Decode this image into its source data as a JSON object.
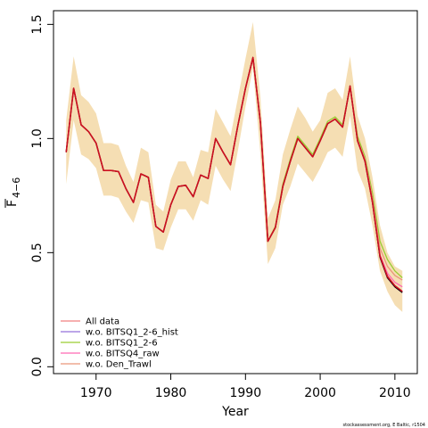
{
  "chart_data": {
    "type": "line",
    "xlabel": "Year",
    "ylabel_main": "F",
    "ylabel_sub": "4−6",
    "xlim": [
      1964.3,
      2013.0
    ],
    "ylim": [
      -0.03,
      1.56
    ],
    "xticks": [
      1970,
      1980,
      1990,
      2000,
      2010
    ],
    "xtick_labels": [
      "1970",
      "1980",
      "1990",
      "2000",
      "2010"
    ],
    "yticks": [
      0.0,
      0.5,
      1.0,
      1.5
    ],
    "ytick_labels": [
      "0.0",
      "0.5",
      "1.0",
      "1.5"
    ],
    "grid": false,
    "legend_position": "bottom-left",
    "band": {
      "color": "#F5DEB3",
      "x": [
        1966,
        1967,
        1968,
        1969,
        1970,
        1971,
        1972,
        1973,
        1974,
        1975,
        1976,
        1977,
        1978,
        1979,
        1980,
        1981,
        1982,
        1983,
        1984,
        1985,
        1986,
        1987,
        1988,
        1989,
        1990,
        1991,
        1992,
        1993,
        1994,
        1995,
        1996,
        1997,
        1998,
        1999,
        2000,
        2001,
        2002,
        2003,
        2004,
        2005,
        2006,
        2007,
        2008,
        2009,
        2010,
        2011
      ],
      "upper": [
        1.08,
        1.36,
        1.19,
        1.16,
        1.11,
        0.98,
        0.98,
        0.97,
        0.88,
        0.81,
        0.96,
        0.94,
        0.71,
        0.68,
        0.82,
        0.9,
        0.9,
        0.83,
        0.95,
        0.94,
        1.13,
        1.07,
        1.01,
        1.18,
        1.35,
        1.51,
        1.18,
        0.65,
        0.73,
        0.93,
        1.04,
        1.14,
        1.09,
        1.03,
        1.08,
        1.2,
        1.22,
        1.17,
        1.36,
        1.1,
        1.0,
        0.83,
        0.62,
        0.5,
        0.44,
        0.42
      ],
      "lower": [
        0.8,
        1.08,
        0.93,
        0.91,
        0.87,
        0.75,
        0.75,
        0.74,
        0.68,
        0.63,
        0.73,
        0.72,
        0.52,
        0.51,
        0.61,
        0.69,
        0.69,
        0.64,
        0.73,
        0.71,
        0.88,
        0.82,
        0.77,
        0.95,
        1.14,
        1.31,
        0.93,
        0.45,
        0.52,
        0.71,
        0.79,
        0.89,
        0.85,
        0.81,
        0.87,
        0.94,
        0.96,
        0.92,
        1.1,
        0.86,
        0.78,
        0.62,
        0.42,
        0.33,
        0.27,
        0.24
      ]
    },
    "x": [
      1966,
      1967,
      1968,
      1969,
      1970,
      1971,
      1972,
      1973,
      1974,
      1975,
      1976,
      1977,
      1978,
      1979,
      1980,
      1981,
      1982,
      1983,
      1984,
      1985,
      1986,
      1987,
      1988,
      1989,
      1990,
      1991,
      1992,
      1993,
      1994,
      1995,
      1996,
      1997,
      1998,
      1999,
      2000,
      2001,
      2002,
      2003,
      2004,
      2005,
      2006,
      2007,
      2008,
      2009,
      2010,
      2011
    ],
    "series": [
      {
        "name": "All data",
        "color": "#F08080",
        "values": [
          0.94,
          1.22,
          1.06,
          1.03,
          0.98,
          0.86,
          0.86,
          0.855,
          0.78,
          0.72,
          0.845,
          0.83,
          0.615,
          0.59,
          0.71,
          0.79,
          0.795,
          0.745,
          0.84,
          0.825,
          1.0,
          0.94,
          0.885,
          1.06,
          1.22,
          1.355,
          1.07,
          0.55,
          0.61,
          0.79,
          0.9,
          1.0,
          0.96,
          0.92,
          0.99,
          1.065,
          1.085,
          1.05,
          1.23,
          0.99,
          0.9,
          0.72,
          0.49,
          0.4,
          0.355,
          0.33
        ]
      },
      {
        "name": "w.o. BITSQ1_2-6_hist",
        "color": "#9370DB",
        "values": [
          0.94,
          1.22,
          1.06,
          1.03,
          0.98,
          0.86,
          0.86,
          0.855,
          0.78,
          0.72,
          0.845,
          0.83,
          0.615,
          0.59,
          0.71,
          0.79,
          0.795,
          0.745,
          0.84,
          0.825,
          1.0,
          0.94,
          0.885,
          1.06,
          1.22,
          1.355,
          1.07,
          0.55,
          0.61,
          0.79,
          0.9,
          1.0,
          0.96,
          0.92,
          0.99,
          1.065,
          1.085,
          1.05,
          1.23,
          0.99,
          0.9,
          0.72,
          0.48,
          0.39,
          0.35,
          0.325
        ]
      },
      {
        "name": "w.o. BITSQ1_2-6",
        "color": "#9ACD32",
        "values": [
          0.94,
          1.22,
          1.06,
          1.03,
          0.98,
          0.86,
          0.86,
          0.855,
          0.78,
          0.72,
          0.845,
          0.83,
          0.615,
          0.59,
          0.71,
          0.79,
          0.795,
          0.745,
          0.84,
          0.825,
          1.0,
          0.94,
          0.885,
          1.06,
          1.22,
          1.355,
          1.07,
          0.55,
          0.615,
          0.8,
          0.91,
          1.01,
          0.97,
          0.93,
          1.0,
          1.075,
          1.095,
          1.06,
          1.225,
          1.01,
          0.92,
          0.76,
          0.55,
          0.47,
          0.42,
          0.39
        ]
      },
      {
        "name": "w.o. BITSQ4_raw",
        "color": "#FF69B4",
        "values": [
          0.94,
          1.22,
          1.06,
          1.03,
          0.98,
          0.86,
          0.86,
          0.855,
          0.78,
          0.72,
          0.845,
          0.83,
          0.615,
          0.59,
          0.71,
          0.79,
          0.795,
          0.745,
          0.84,
          0.825,
          1.0,
          0.94,
          0.885,
          1.06,
          1.22,
          1.355,
          1.07,
          0.55,
          0.61,
          0.79,
          0.9,
          1.0,
          0.96,
          0.92,
          0.99,
          1.065,
          1.085,
          1.05,
          1.23,
          0.99,
          0.9,
          0.72,
          0.49,
          0.41,
          0.37,
          0.35
        ]
      },
      {
        "name": "w.o. Den_Trawl",
        "color": "#E9967A",
        "values": [
          0.94,
          1.22,
          1.06,
          1.03,
          0.98,
          0.86,
          0.86,
          0.855,
          0.78,
          0.72,
          0.845,
          0.83,
          0.615,
          0.59,
          0.71,
          0.79,
          0.795,
          0.745,
          0.84,
          0.825,
          1.0,
          0.94,
          0.885,
          1.06,
          1.22,
          1.355,
          1.07,
          0.55,
          0.61,
          0.79,
          0.9,
          1.0,
          0.96,
          0.92,
          0.99,
          1.065,
          1.085,
          1.05,
          1.23,
          0.995,
          0.91,
          0.74,
          0.52,
          0.44,
          0.4,
          0.38
        ]
      },
      {
        "name": "",
        "color": "#000000",
        "values": [
          0.94,
          1.22,
          1.06,
          1.03,
          0.98,
          0.86,
          0.86,
          0.855,
          0.78,
          0.72,
          0.845,
          0.83,
          0.615,
          0.59,
          0.71,
          0.79,
          0.795,
          0.745,
          0.84,
          0.825,
          1.0,
          0.94,
          0.885,
          1.06,
          1.22,
          1.355,
          1.07,
          0.55,
          0.61,
          0.79,
          0.9,
          1.0,
          0.96,
          0.92,
          0.99,
          1.065,
          1.085,
          1.05,
          1.23,
          0.99,
          0.9,
          0.72,
          0.48,
          0.39,
          0.35,
          0.325
        ]
      },
      {
        "name": "",
        "color": "#CC1020",
        "values": [
          0.94,
          1.22,
          1.06,
          1.03,
          0.98,
          0.86,
          0.86,
          0.855,
          0.78,
          0.72,
          0.845,
          0.83,
          0.615,
          0.59,
          0.71,
          0.79,
          0.795,
          0.745,
          0.84,
          0.825,
          1.0,
          0.94,
          0.885,
          1.06,
          1.22,
          1.355,
          1.07,
          0.55,
          0.61,
          0.79,
          0.9,
          1.0,
          0.96,
          0.92,
          0.99,
          1.065,
          1.085,
          1.05,
          1.23,
          0.99,
          0.9,
          0.72,
          0.485,
          0.395,
          0.355,
          0.33
        ]
      }
    ],
    "legend": [
      {
        "label": "All data",
        "color": "#F08080"
      },
      {
        "label": "w.o. BITSQ1_2-6_hist",
        "color": "#9370DB"
      },
      {
        "label": "w.o. BITSQ1_2-6",
        "color": "#9ACD32"
      },
      {
        "label": "w.o. BITSQ4_raw",
        "color": "#FF69B4"
      },
      {
        "label": "w.o. Den_Trawl",
        "color": "#E9967A"
      }
    ],
    "footnote": "stockassessment.org, E Baltic, r1504"
  }
}
